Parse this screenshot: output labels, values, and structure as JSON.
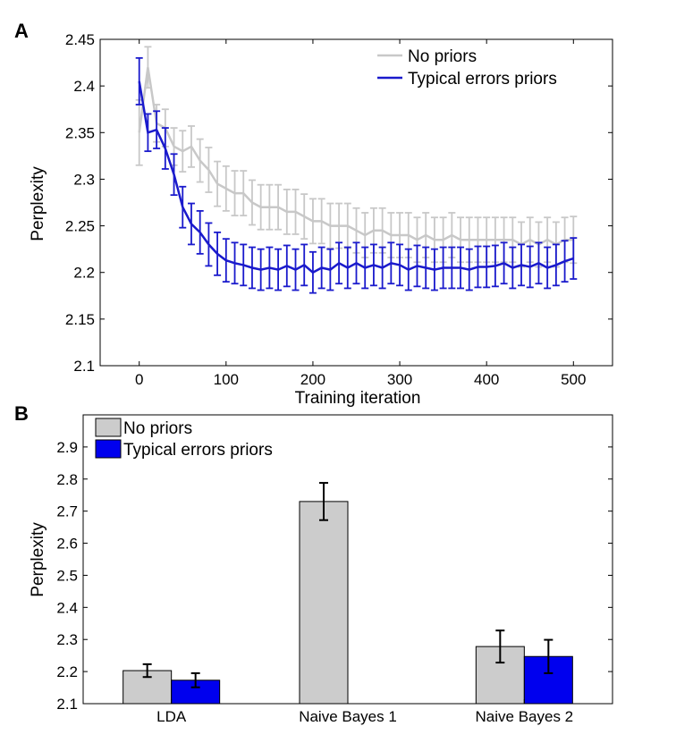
{
  "colors": {
    "no_priors": "#c8c8c8",
    "typical": "#1a1acc",
    "bar_no_priors": "#cccccc",
    "bar_typical": "#0000ee",
    "error_bar_b": "#000000"
  },
  "chart_data": [
    {
      "panel": "A",
      "type": "line",
      "xlabel": "Training iteration",
      "ylabel": "Perplexity",
      "xlim": [
        -45,
        545
      ],
      "ylim": [
        2.1,
        2.45
      ],
      "xticks": [
        "0",
        "100",
        "200",
        "300",
        "400",
        "500"
      ],
      "yticks": [
        "2.1",
        "2.15",
        "2.2",
        "2.25",
        "2.3",
        "2.35",
        "2.4",
        "2.45"
      ],
      "legend": "top-right",
      "grid": false,
      "x": [
        0,
        10,
        20,
        30,
        40,
        50,
        60,
        70,
        80,
        90,
        100,
        110,
        120,
        130,
        140,
        150,
        160,
        170,
        180,
        190,
        200,
        210,
        220,
        230,
        240,
        250,
        260,
        270,
        280,
        290,
        300,
        310,
        320,
        330,
        340,
        350,
        360,
        370,
        380,
        390,
        400,
        410,
        420,
        430,
        440,
        450,
        460,
        470,
        480,
        490,
        500
      ],
      "series": [
        {
          "name": "No priors",
          "values": [
            2.35,
            2.42,
            2.36,
            2.355,
            2.335,
            2.33,
            2.335,
            2.32,
            2.31,
            2.295,
            2.29,
            2.285,
            2.285,
            2.275,
            2.27,
            2.27,
            2.27,
            2.265,
            2.265,
            2.26,
            2.255,
            2.255,
            2.25,
            2.25,
            2.25,
            2.245,
            2.24,
            2.245,
            2.245,
            2.24,
            2.24,
            2.24,
            2.235,
            2.24,
            2.235,
            2.235,
            2.24,
            2.235,
            2.235,
            2.235,
            2.235,
            2.235,
            2.235,
            2.235,
            2.23,
            2.235,
            2.23,
            2.235,
            2.23,
            2.235,
            2.235
          ],
          "error": [
            0.035,
            0.022,
            0.02,
            0.02,
            0.02,
            0.022,
            0.022,
            0.023,
            0.024,
            0.024,
            0.024,
            0.024,
            0.024,
            0.024,
            0.024,
            0.024,
            0.024,
            0.024,
            0.024,
            0.024,
            0.024,
            0.024,
            0.024,
            0.024,
            0.024,
            0.024,
            0.024,
            0.024,
            0.024,
            0.024,
            0.024,
            0.024,
            0.024,
            0.024,
            0.024,
            0.024,
            0.024,
            0.024,
            0.024,
            0.024,
            0.024,
            0.024,
            0.024,
            0.024,
            0.024,
            0.024,
            0.024,
            0.024,
            0.024,
            0.024,
            0.025
          ]
        },
        {
          "name": "Typical errors priors",
          "values": [
            2.405,
            2.35,
            2.353,
            2.333,
            2.305,
            2.27,
            2.252,
            2.243,
            2.23,
            2.22,
            2.213,
            2.21,
            2.208,
            2.205,
            2.203,
            2.205,
            2.203,
            2.207,
            2.203,
            2.208,
            2.2,
            2.205,
            2.203,
            2.21,
            2.205,
            2.21,
            2.205,
            2.208,
            2.205,
            2.21,
            2.208,
            2.203,
            2.207,
            2.205,
            2.203,
            2.205,
            2.205,
            2.205,
            2.203,
            2.206,
            2.206,
            2.207,
            2.21,
            2.205,
            2.208,
            2.206,
            2.21,
            2.205,
            2.208,
            2.212,
            2.215
          ],
          "error": [
            0.025,
            0.02,
            0.02,
            0.022,
            0.022,
            0.022,
            0.022,
            0.023,
            0.023,
            0.023,
            0.023,
            0.022,
            0.022,
            0.022,
            0.022,
            0.022,
            0.022,
            0.022,
            0.022,
            0.022,
            0.022,
            0.022,
            0.022,
            0.022,
            0.022,
            0.022,
            0.022,
            0.022,
            0.022,
            0.022,
            0.022,
            0.022,
            0.022,
            0.022,
            0.022,
            0.022,
            0.022,
            0.022,
            0.022,
            0.022,
            0.022,
            0.022,
            0.022,
            0.022,
            0.022,
            0.022,
            0.022,
            0.022,
            0.022,
            0.022,
            0.022
          ]
        }
      ]
    },
    {
      "panel": "B",
      "type": "bar",
      "ylabel": "Perplexity",
      "ylim": [
        2.1,
        3.0
      ],
      "yticks": [
        "2.1",
        "2.2",
        "2.3",
        "2.4",
        "2.5",
        "2.6",
        "2.7",
        "2.8",
        "2.9"
      ],
      "categories": [
        "LDA",
        "Naive Bayes 1",
        "Naive Bayes 2"
      ],
      "legend": "top-left",
      "grid": false,
      "series": [
        {
          "name": "No priors",
          "values": [
            2.203,
            2.73,
            2.278
          ],
          "error": [
            0.02,
            0.058,
            0.05
          ]
        },
        {
          "name": "Typical errors priors",
          "values": [
            2.173,
            null,
            2.247
          ],
          "error": [
            0.022,
            null,
            0.052
          ]
        }
      ]
    }
  ]
}
